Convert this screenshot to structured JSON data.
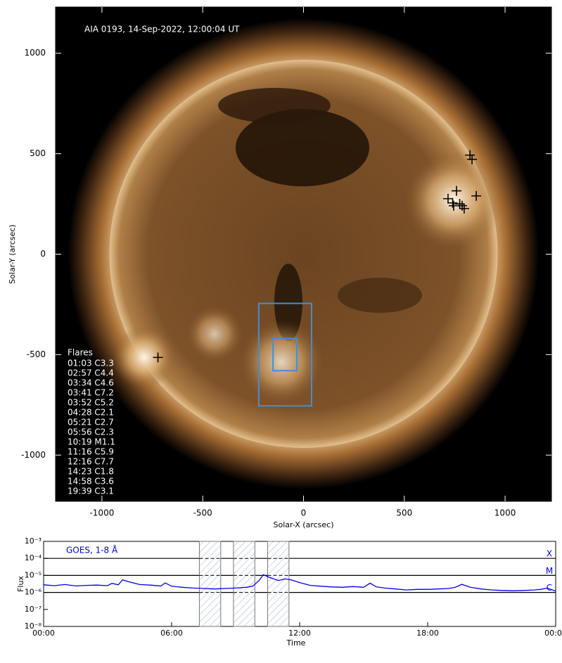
{
  "chart_data": [
    {
      "type": "image",
      "title": "AIA 0193, 14-Sep-2022, 12:00:04 UT",
      "x_label": "Solar-X (arcsec)",
      "y_label": "Solar-Y (arcsec)",
      "xlim": [
        -1230,
        1230
      ],
      "ylim": [
        -1230,
        1230
      ],
      "xticks": [
        -1000,
        -500,
        0,
        500,
        1000
      ],
      "yticks": [
        -1000,
        -500,
        0,
        500,
        1000
      ],
      "boxes": [
        {
          "x": [
            -222,
            40
          ],
          "y": [
            -755,
            -245
          ]
        },
        {
          "x": [
            -151,
            -33
          ],
          "y": [
            -580,
            -420
          ]
        }
      ],
      "box_color": "#3f8fd9",
      "flare_markers": {
        "x": [
          -722,
          826,
          836,
          759,
          717,
          745,
          787,
          797,
          857,
          740,
          775
        ],
        "y": [
          -514,
          493,
          472,
          315,
          276,
          241,
          241,
          227,
          290,
          255,
          250
        ]
      },
      "flare_list": {
        "title": "Flares",
        "entries": [
          "01:03 C3.3",
          "02:57 C4.4",
          "03:34 C4.6",
          "03:41 C7.2",
          "03:52 C5.2",
          "04:28 C2.1",
          "05:21 C2.7",
          "05:56 C2.3",
          "10:19 M1.1",
          "11:16 C5.9",
          "12:16 C7.7",
          "14:23 C1.8",
          "14:58 C3.6",
          "19:39 C3.1"
        ]
      }
    },
    {
      "type": "line",
      "x_label": "Time",
      "y_label": "Flux",
      "xlim": [
        0,
        24
      ],
      "xticks": [
        {
          "value": 0,
          "label": "00:00"
        },
        {
          "value": 6,
          "label": "06:00"
        },
        {
          "value": 12,
          "label": "12:00"
        },
        {
          "value": 18,
          "label": "18:00"
        },
        {
          "value": 24,
          "label": "00:00"
        }
      ],
      "ylim": [
        1e-08,
        0.001
      ],
      "log_scale": true,
      "yticks": [
        {
          "value": 1e-08,
          "label": "10⁻⁸"
        },
        {
          "value": 1e-07,
          "label": "10⁻⁷"
        },
        {
          "value": 1e-06,
          "label": "10⁻⁶"
        },
        {
          "value": 1e-05,
          "label": "10⁻⁵"
        },
        {
          "value": 0.0001,
          "label": "10⁻⁴"
        },
        {
          "value": 0.001,
          "label": "10⁻³"
        }
      ],
      "class_levels": [
        {
          "value": 0.0001,
          "label": "X"
        },
        {
          "value": 1e-05,
          "label": "M"
        },
        {
          "value": 1e-06,
          "label": "C"
        }
      ],
      "shaded_intervals": [
        [
          7.3,
          8.3
        ],
        [
          8.9,
          9.9
        ],
        [
          10.5,
          11.5
        ]
      ],
      "series": [
        {
          "name": "GOES, 1-8 Å",
          "color": "#0000ee",
          "x": [
            0,
            0.5,
            1,
            1.5,
            2,
            2.5,
            3,
            3.2,
            3.5,
            3.7,
            4,
            4.5,
            5,
            5.5,
            5.7,
            6,
            6.5,
            7,
            7.5,
            8,
            8.5,
            9,
            9.5,
            9.8,
            10.1,
            10.3,
            10.6,
            11,
            11.3,
            11.6,
            12,
            12.5,
            13,
            13.5,
            14,
            14.5,
            15,
            15.3,
            15.6,
            16,
            16.5,
            17,
            17.5,
            18,
            18.5,
            19,
            19.3,
            19.6,
            20,
            20.5,
            21,
            21.5,
            22,
            22.5,
            23,
            23.3,
            23.6,
            24
          ],
          "values": [
            2.8e-06,
            2.5e-06,
            2.9e-06,
            2.4e-06,
            2.6e-06,
            2.7e-06,
            2.5e-06,
            3.4e-06,
            2.8e-06,
            5.5e-06,
            4.2e-06,
            2.9e-06,
            2.7e-06,
            2.4e-06,
            3.6e-06,
            2.3e-06,
            2e-06,
            1.8e-06,
            1.7e-06,
            1.6e-06,
            1.7e-06,
            1.8e-06,
            2e-06,
            2.3e-06,
            5e-06,
            1.1e-05,
            7.5e-06,
            5e-06,
            6.2e-06,
            5.5e-06,
            3.8e-06,
            2.6e-06,
            2.3e-06,
            2.1e-06,
            2e-06,
            2.2e-06,
            2e-06,
            3.5e-06,
            2.1e-06,
            1.8e-06,
            1.6e-06,
            1.4e-06,
            1.5e-06,
            1.5e-06,
            1.6e-06,
            1.7e-06,
            2e-06,
            3e-06,
            2e-06,
            1.6e-06,
            1.4e-06,
            1.3e-06,
            1.25e-06,
            1.3e-06,
            1.4e-06,
            1.5e-06,
            1.8e-06,
            1.2e-06
          ]
        }
      ]
    }
  ]
}
